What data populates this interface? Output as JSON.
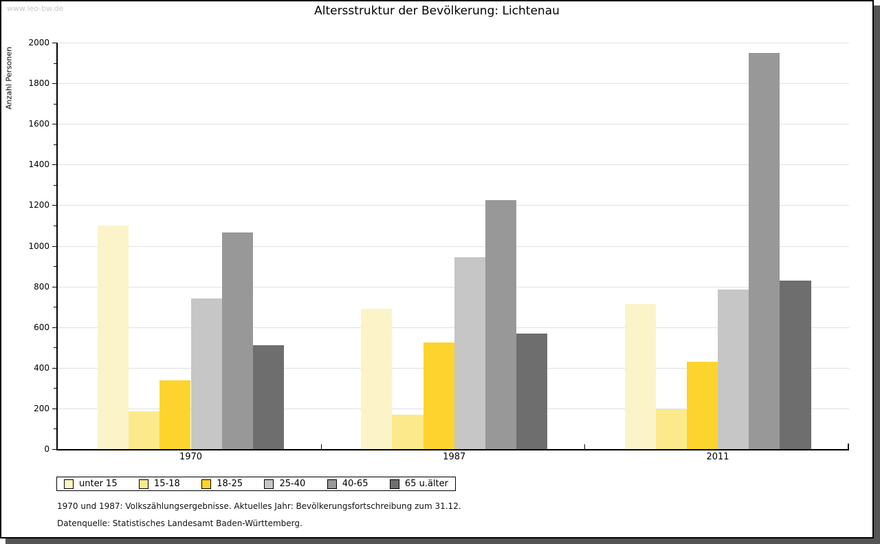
{
  "watermark": "www.leo-bw.de",
  "title": "Altersstruktur der Bevölkerung: Lichtenau",
  "footnotes": [
    "1970 und 1987: Volkszählungsergebnisse. Aktuelles Jahr: Bevölkerungsfortschreibung zum 31.12.",
    "Datenquelle: Statistisches Landesamt Baden-Württemberg."
  ],
  "colors": {
    "axis": "#000000",
    "gridline": "#e0e0e0",
    "watermark_text": "#c8c8c8",
    "frame_shadow": "#555555"
  },
  "chart_data": {
    "type": "bar",
    "title": "Altersstruktur der Bevölkerung: Lichtenau",
    "ylabel": "Anzahl Personen",
    "xlabel": "",
    "categories": [
      "1970",
      "1987",
      "2011"
    ],
    "series": [
      {
        "name": "unter 15",
        "color": "#fbf4c8",
        "values": [
          1100,
          690,
          715
        ]
      },
      {
        "name": "15-18",
        "color": "#fce98c",
        "values": [
          185,
          170,
          195
        ]
      },
      {
        "name": "18-25",
        "color": "#fdd42e",
        "values": [
          340,
          525,
          430
        ]
      },
      {
        "name": "25-40",
        "color": "#c6c6c6",
        "values": [
          740,
          945,
          785
        ]
      },
      {
        "name": "40-65",
        "color": "#989898",
        "values": [
          1065,
          1225,
          1950
        ]
      },
      {
        "name": "65 u.älter",
        "color": "#6e6e6e",
        "values": [
          510,
          570,
          830
        ]
      }
    ],
    "ylim": [
      0,
      2000
    ],
    "ytick_step": 200,
    "ytick_minor_step": 100,
    "grid": true,
    "legend_position": "bottom-left"
  }
}
